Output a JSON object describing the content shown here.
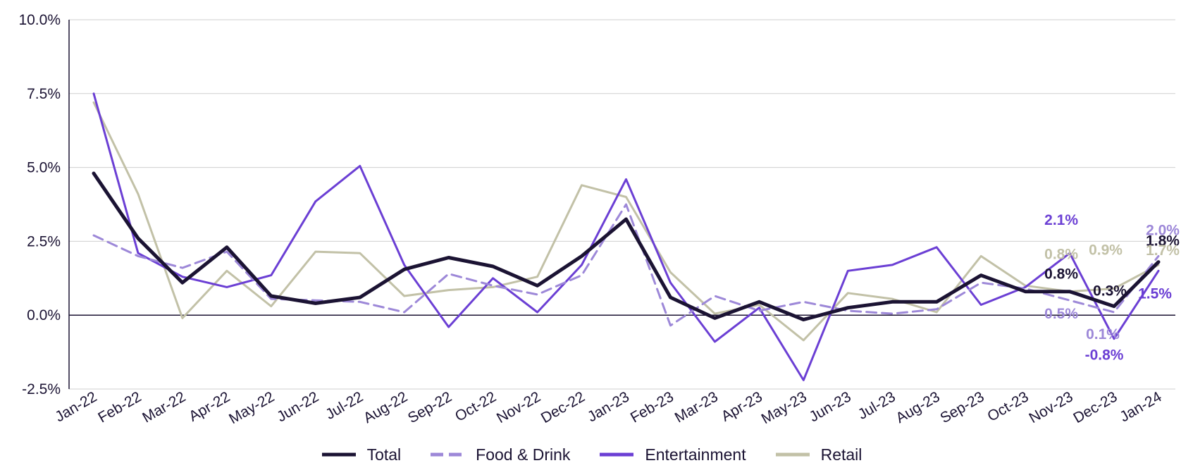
{
  "chart_data": {
    "type": "line",
    "categories": [
      "Jan-22",
      "Feb-22",
      "Mar-22",
      "Apr-22",
      "May-22",
      "Jun-22",
      "Jul-22",
      "Aug-22",
      "Sep-22",
      "Oct-22",
      "Nov-22",
      "Dec-22",
      "Jan-23",
      "Feb-23",
      "Mar-23",
      "Apr-23",
      "May-23",
      "Jun-23",
      "Jul-23",
      "Aug-23",
      "Sep-23",
      "Oct-23",
      "Nov-23",
      "Dec-23",
      "Jan-24"
    ],
    "yticks": [
      "10.0%",
      "7.5%",
      "5.0%",
      "2.5%",
      "0.0%",
      "-2.5%"
    ],
    "ylim": [
      -2.5,
      10.0
    ],
    "legend_position": "bottom",
    "grid": true,
    "series": [
      {
        "name": "Retail",
        "key": "retail",
        "color": "#c2c1a7",
        "dash": "",
        "width": 3,
        "values": [
          7.2,
          4.1,
          -0.1,
          1.5,
          0.3,
          2.15,
          2.1,
          0.65,
          0.85,
          0.95,
          1.3,
          4.4,
          4.0,
          1.45,
          0.05,
          0.35,
          -0.85,
          0.75,
          0.55,
          0.1,
          2.0,
          1.0,
          0.8,
          0.9,
          1.7
        ]
      },
      {
        "name": "Entertainment",
        "key": "entertainment",
        "color": "#6b3fd4",
        "dash": "",
        "width": 3,
        "values": [
          7.5,
          2.1,
          1.3,
          0.95,
          1.35,
          3.85,
          5.05,
          1.7,
          -0.4,
          1.25,
          0.1,
          1.7,
          4.6,
          1.1,
          -0.9,
          0.25,
          -2.2,
          1.5,
          1.7,
          2.3,
          0.35,
          0.95,
          2.1,
          -0.8,
          1.5
        ]
      },
      {
        "name": "Food & Drink",
        "key": "food",
        "color": "#9d88d8",
        "dash": "14 8",
        "width": 3,
        "values": [
          2.7,
          2.0,
          1.6,
          2.15,
          0.55,
          0.5,
          0.45,
          0.1,
          1.4,
          1.0,
          0.7,
          1.35,
          3.75,
          -0.35,
          0.65,
          0.15,
          0.45,
          0.15,
          0.05,
          0.2,
          1.1,
          0.9,
          0.5,
          0.1,
          2.0
        ]
      },
      {
        "name": "Total",
        "key": "total",
        "color": "#1b1333",
        "dash": "",
        "width": 5,
        "values": [
          4.8,
          2.6,
          1.1,
          2.3,
          0.65,
          0.4,
          0.6,
          1.55,
          1.95,
          1.65,
          1.0,
          2.0,
          3.25,
          0.6,
          -0.1,
          0.45,
          -0.15,
          0.25,
          0.45,
          0.45,
          1.35,
          0.8,
          0.8,
          0.3,
          1.8
        ]
      }
    ],
    "legend_order": [
      "Total",
      "Food & Drink",
      "Entertainment",
      "Retail"
    ],
    "annotations": [
      {
        "text": "2.1%",
        "series": "entertainment",
        "index": 22,
        "value": 2.1
      },
      {
        "text": "0.8%",
        "series": "retail",
        "index": 22,
        "value": 0.8
      },
      {
        "text": "0.8%",
        "series": "total",
        "index": 22,
        "value": 0.8
      },
      {
        "text": "0.5%",
        "series": "food",
        "index": 22,
        "value": 0.5
      },
      {
        "text": "0.9%",
        "series": "retail",
        "index": 23,
        "value": 0.9
      },
      {
        "text": "0.3%",
        "series": "total",
        "index": 23,
        "value": 0.3
      },
      {
        "text": "0.1%",
        "series": "food",
        "index": 23,
        "value": 0.1
      },
      {
        "text": "-0.8%",
        "series": "entertainment",
        "index": 23,
        "value": -0.8
      },
      {
        "text": "2.0%",
        "series": "food",
        "index": 24,
        "value": 2.0
      },
      {
        "text": "1.8%",
        "series": "total",
        "index": 24,
        "value": 1.8
      },
      {
        "text": "1.7%",
        "series": "retail",
        "index": 24,
        "value": 1.7
      },
      {
        "text": "1.5%",
        "series": "entertainment",
        "index": 24,
        "value": 1.5
      }
    ]
  }
}
